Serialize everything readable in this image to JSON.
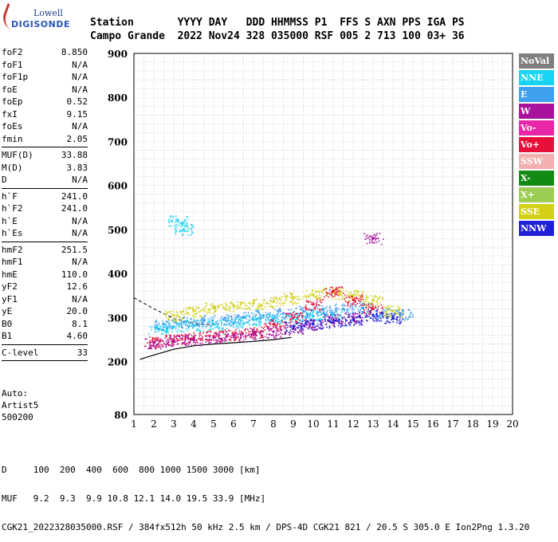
{
  "logo": {
    "top": "Lowell",
    "bottom": "DIGISONDE"
  },
  "header": {
    "line1": "Station       YYYY DAY   DDD HHMMSS P1  FFS S AXN PPS IGA PS",
    "line2": "Campo Grande  2022 Nov24 328 035000 RSF 005 2 713 100 03+ 36"
  },
  "params": [
    {
      "label": "foF2",
      "value": "8.850"
    },
    {
      "label": "foF1",
      "value": "N/A"
    },
    {
      "label": "foF1p",
      "value": "N/A"
    },
    {
      "label": "foE",
      "value": "N/A"
    },
    {
      "label": "foEp",
      "value": "0.52"
    },
    {
      "label": "fxI",
      "value": "9.15"
    },
    {
      "label": "foEs",
      "value": "N/A"
    },
    {
      "label": "fmin",
      "value": "2.05"
    },
    {
      "sep": true
    },
    {
      "label": "MUF(D)",
      "value": "33.88"
    },
    {
      "label": "M(D)",
      "value": "3.83"
    },
    {
      "label": "D",
      "value": "N/A"
    },
    {
      "sep": true
    },
    {
      "label": "h`F",
      "value": "241.0"
    },
    {
      "label": "h`F2",
      "value": "241.0"
    },
    {
      "label": "h`E",
      "value": "N/A"
    },
    {
      "label": "h`Es",
      "value": "N/A"
    },
    {
      "sep": true
    },
    {
      "label": "hmF2",
      "value": "251.5"
    },
    {
      "label": "hmF1",
      "value": "N/A"
    },
    {
      "label": "hmE",
      "value": "110.0"
    },
    {
      "label": "yF2",
      "value": "12.6"
    },
    {
      "label": "yF1",
      "value": "N/A"
    },
    {
      "label": "yE",
      "value": "20.0"
    },
    {
      "label": "B0",
      "value": "8.1"
    },
    {
      "label": "B1",
      "value": "4.60"
    },
    {
      "sep": true
    },
    {
      "label": "C-level",
      "value": "33"
    },
    {
      "sep": true
    }
  ],
  "auto": {
    "line1": "Auto:",
    "line2": "Artist5",
    "line3": "500200"
  },
  "legend": [
    {
      "label": "NoVal",
      "color": "#7f7f7f"
    },
    {
      "label": "NNE",
      "color": "#19d3f3"
    },
    {
      "label": "E",
      "color": "#3fa0f0"
    },
    {
      "label": "W",
      "color": "#a8129c"
    },
    {
      "label": "Vo-",
      "color": "#ea26a8"
    },
    {
      "label": "Vo+",
      "color": "#e6103a"
    },
    {
      "label": "SSW",
      "color": "#f4b0b0"
    },
    {
      "label": "X-",
      "color": "#138a13"
    },
    {
      "label": "X+",
      "color": "#9ccc52"
    },
    {
      "label": "SSE",
      "color": "#d3d117"
    },
    {
      "label": "NNW",
      "color": "#2020d8"
    }
  ],
  "bottom": {
    "line1": "D     100  200  400  600  800 1000 1500 3000 [km]",
    "line2": "MUF   9.2  9.3  9.9 10.8 12.1 14.0 19.5 33.9 [MHz]",
    "line3": "CGK21_2022328035000.RSF / 384fx512h 50 kHz 2.5 km / DPS-4D CGK21 821 / 20.5 S 305.0 E Ion2Png 1.3.20"
  },
  "chart_data": {
    "type": "scatter",
    "x_ticks": [
      "1",
      "2",
      "3",
      "4",
      "5",
      "6",
      "7",
      "8",
      "9",
      "10",
      "11",
      "12",
      "13",
      "14",
      "15",
      "16",
      "17",
      "18",
      "19",
      "20"
    ],
    "y_ticks": [
      "80",
      "200",
      "300",
      "400",
      "500",
      "600",
      "700",
      "800",
      "900"
    ],
    "xlim": [
      1,
      20
    ],
    "ylim": [
      80,
      900
    ],
    "series": [
      {
        "name": "NNE",
        "points": [
          [
            2.2,
            275
          ],
          [
            3,
            280
          ],
          [
            4,
            283
          ],
          [
            5,
            285
          ],
          [
            6,
            288
          ],
          [
            7,
            295
          ],
          [
            8,
            298
          ],
          [
            9,
            300
          ],
          [
            10,
            303
          ],
          [
            11,
            305
          ],
          [
            3.2,
            520
          ],
          [
            3.5,
            500
          ]
        ]
      },
      {
        "name": "E",
        "points": [
          [
            2.5,
            285
          ],
          [
            3.5,
            290
          ],
          [
            4.5,
            293
          ],
          [
            5.5,
            296
          ],
          [
            6.5,
            300
          ],
          [
            7.5,
            305
          ],
          [
            8.5,
            310
          ],
          [
            9.5,
            315
          ],
          [
            10.5,
            318
          ],
          [
            11.5,
            320
          ],
          [
            12.5,
            322
          ],
          [
            13.5,
            310
          ],
          [
            14.5,
            308
          ]
        ]
      },
      {
        "name": "SSE",
        "points": [
          [
            3,
            305
          ],
          [
            4,
            315
          ],
          [
            5,
            322
          ],
          [
            6,
            328
          ],
          [
            7,
            332
          ],
          [
            8,
            336
          ],
          [
            9,
            345
          ],
          [
            10,
            352
          ],
          [
            11,
            356
          ],
          [
            12,
            350
          ],
          [
            13,
            340
          ],
          [
            14,
            315
          ]
        ]
      },
      {
        "name": "Vo+",
        "points": [
          [
            2,
            245
          ],
          [
            3,
            250
          ],
          [
            4,
            255
          ],
          [
            5,
            258
          ],
          [
            6,
            262
          ],
          [
            7,
            268
          ],
          [
            8,
            285
          ],
          [
            9,
            300
          ],
          [
            10,
            330
          ],
          [
            11,
            360
          ],
          [
            12,
            340
          ],
          [
            13,
            320
          ]
        ]
      },
      {
        "name": "W",
        "points": [
          [
            2,
            243
          ],
          [
            3,
            247
          ],
          [
            4,
            250
          ],
          [
            5,
            255
          ],
          [
            6,
            260
          ],
          [
            7,
            263
          ],
          [
            8,
            268
          ],
          [
            9,
            275
          ],
          [
            10,
            285
          ],
          [
            11,
            295
          ],
          [
            12,
            300
          ],
          [
            13,
            480
          ]
        ]
      },
      {
        "name": "NNW",
        "points": [
          [
            9,
            280
          ],
          [
            10,
            285
          ],
          [
            11,
            290
          ],
          [
            12,
            295
          ],
          [
            13,
            305
          ],
          [
            14,
            300
          ]
        ]
      }
    ]
  }
}
